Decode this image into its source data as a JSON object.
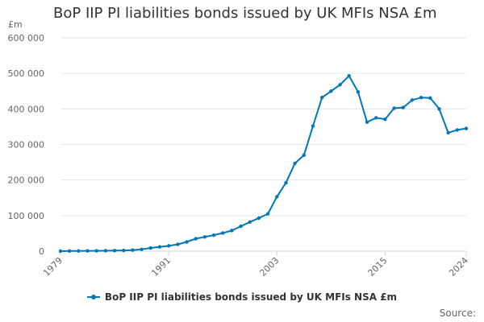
{
  "colors": {
    "series": "#0077b6",
    "grid": "#e6e6e6",
    "axis": "#ccd6eb"
  },
  "legend": {
    "label": "BoP IIP PI liabilities bonds issued by UK MFIs NSA £m"
  },
  "source": {
    "label": "Source:"
  },
  "chart_data": {
    "type": "line",
    "title": "BoP IIP PI liabilities bonds issued by UK MFIs NSA £m",
    "ylabel": "£m",
    "xlabel": "",
    "ylim": [
      0,
      600000
    ],
    "yticks": [
      0,
      100000,
      200000,
      300000,
      400000,
      500000,
      600000
    ],
    "ytick_labels": [
      "0",
      "100 000",
      "200 000",
      "300 000",
      "400 000",
      "500 000",
      "600 000"
    ],
    "xlim": [
      1979,
      2024
    ],
    "xticks": [
      1979,
      1991,
      2003,
      2015,
      2024
    ],
    "xtick_labels": [
      "1979",
      "1991",
      "2003",
      "2015",
      "2024"
    ],
    "grid": true,
    "legend_position": "bottom",
    "series": [
      {
        "name": "BoP IIP PI liabilities bonds issued by UK MFIs NSA £m",
        "x": [
          1979,
          1980,
          1981,
          1982,
          1983,
          1984,
          1985,
          1986,
          1987,
          1988,
          1989,
          1990,
          1991,
          1992,
          1993,
          1994,
          1995,
          1996,
          1997,
          1998,
          1999,
          2000,
          2001,
          2002,
          2003,
          2004,
          2005,
          2006,
          2007,
          2008,
          2009,
          2010,
          2011,
          2012,
          2013,
          2014,
          2015,
          2016,
          2017,
          2018,
          2019,
          2020,
          2021,
          2022,
          2023,
          2024
        ],
        "values": [
          0,
          500,
          500,
          800,
          1000,
          1200,
          1500,
          2000,
          3000,
          5000,
          9000,
          12000,
          15000,
          19000,
          26000,
          35000,
          40000,
          45000,
          51000,
          58000,
          70000,
          82000,
          93000,
          105000,
          153000,
          192000,
          247000,
          270000,
          352000,
          432000,
          450000,
          468000,
          493000,
          448000,
          363000,
          375000,
          371000,
          402000,
          404000,
          425000,
          432000,
          431000,
          400000,
          333000,
          341000,
          345000
        ]
      }
    ]
  }
}
